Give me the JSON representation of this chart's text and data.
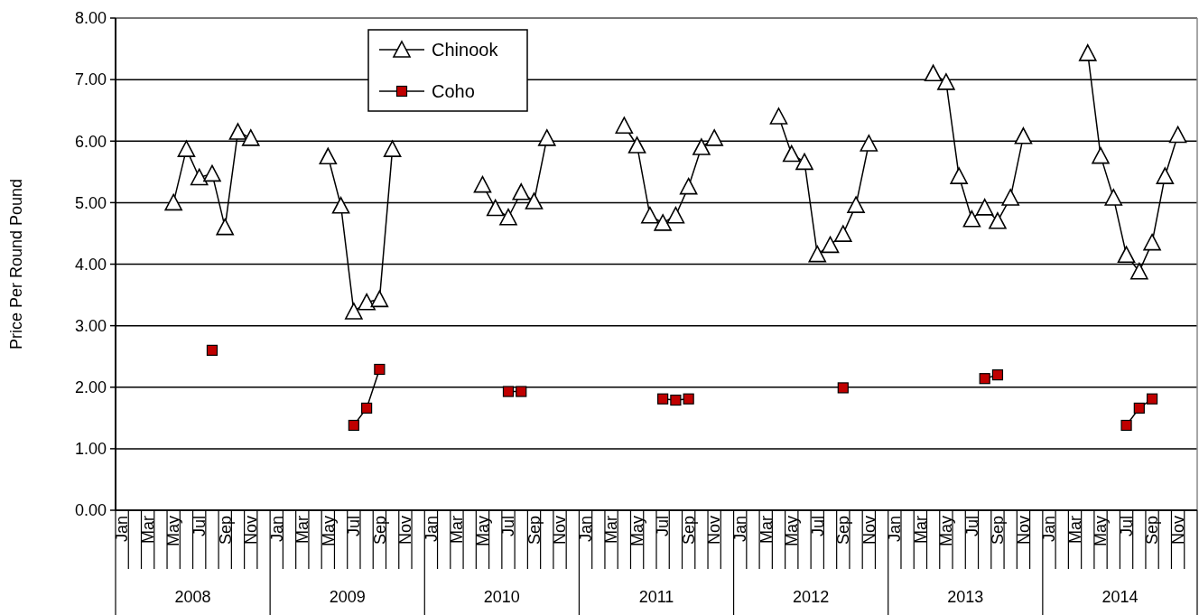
{
  "chart_data": {
    "type": "line",
    "ylabel": "Price Per Round Pound",
    "categories": [
      "Jan",
      null,
      "Mar",
      null,
      "May",
      null,
      "Jul",
      null,
      "Sep",
      null,
      "Nov",
      null,
      "Jan",
      null,
      "Mar",
      null,
      "May",
      null,
      "Jul",
      null,
      "Sep",
      null,
      "Nov",
      null,
      "Jan",
      null,
      "Mar",
      null,
      "May",
      null,
      "Jul",
      null,
      "Sep",
      null,
      "Nov",
      null,
      "Jan",
      null,
      "Mar",
      null,
      "May",
      null,
      "Jul",
      null,
      "Sep",
      null,
      "Nov",
      null,
      "Jan",
      null,
      "Mar",
      null,
      "May",
      null,
      "Jul",
      null,
      "Sep",
      null,
      "Nov",
      null,
      "Jan",
      null,
      "Mar",
      null,
      "May",
      null,
      "Jul",
      null,
      "Sep",
      null,
      "Nov",
      null,
      "Jan",
      null,
      "Mar",
      null,
      "May",
      null,
      "Jul",
      null,
      "Sep",
      null,
      "Nov",
      null
    ],
    "annotations": [
      "2008",
      "2009",
      "2010",
      "2011",
      "2012",
      "2013",
      "2014"
    ],
    "series": [
      {
        "name": "Chinook",
        "color": "#000000",
        "marker": "triangle",
        "values": [
          null,
          null,
          null,
          null,
          5.0,
          5.87,
          5.41,
          5.47,
          4.6,
          6.15,
          6.05,
          null,
          null,
          null,
          null,
          null,
          5.75,
          4.95,
          3.23,
          3.38,
          3.43,
          5.87,
          null,
          null,
          null,
          null,
          null,
          null,
          5.29,
          4.91,
          4.76,
          5.17,
          5.02,
          6.05,
          null,
          null,
          null,
          null,
          null,
          6.25,
          5.93,
          4.79,
          4.67,
          4.79,
          5.26,
          5.9,
          6.05,
          null,
          null,
          null,
          null,
          6.4,
          5.79,
          5.66,
          4.16,
          4.31,
          4.49,
          4.96,
          5.96,
          null,
          null,
          null,
          null,
          7.1,
          6.96,
          5.43,
          4.73,
          4.92,
          4.7,
          5.08,
          6.08,
          null,
          null,
          null,
          null,
          7.43,
          5.76,
          5.08,
          4.15,
          3.88,
          4.35,
          5.43,
          6.1,
          null
        ]
      },
      {
        "name": "Coho",
        "color": "#c00000",
        "marker": "square",
        "values": [
          null,
          null,
          null,
          null,
          null,
          null,
          null,
          2.6,
          null,
          null,
          null,
          null,
          null,
          null,
          null,
          null,
          null,
          null,
          1.38,
          1.66,
          2.29,
          null,
          null,
          null,
          null,
          null,
          null,
          null,
          null,
          null,
          1.93,
          1.93,
          null,
          null,
          null,
          null,
          null,
          null,
          null,
          null,
          null,
          null,
          1.81,
          1.79,
          1.81,
          null,
          null,
          null,
          null,
          null,
          null,
          null,
          null,
          null,
          null,
          null,
          1.99,
          null,
          null,
          null,
          null,
          null,
          null,
          null,
          null,
          null,
          null,
          2.14,
          2.2,
          null,
          null,
          null,
          null,
          null,
          null,
          null,
          null,
          null,
          1.38,
          1.66,
          1.81,
          null,
          null,
          null
        ]
      }
    ],
    "ylim": [
      0,
      8
    ],
    "yticks": [
      {
        "value": 0,
        "label": "0.00"
      },
      {
        "value": 1,
        "label": "1.00"
      },
      {
        "value": 2,
        "label": "2.00"
      },
      {
        "value": 3,
        "label": "3.00"
      },
      {
        "value": 4,
        "label": "4.00"
      },
      {
        "value": 5,
        "label": "5.00"
      },
      {
        "value": 6,
        "label": "6.00"
      },
      {
        "value": 7,
        "label": "7.00"
      },
      {
        "value": 8,
        "label": "8.00"
      }
    ],
    "grid": "y",
    "legend": "top left",
    "line_style": "solid"
  }
}
